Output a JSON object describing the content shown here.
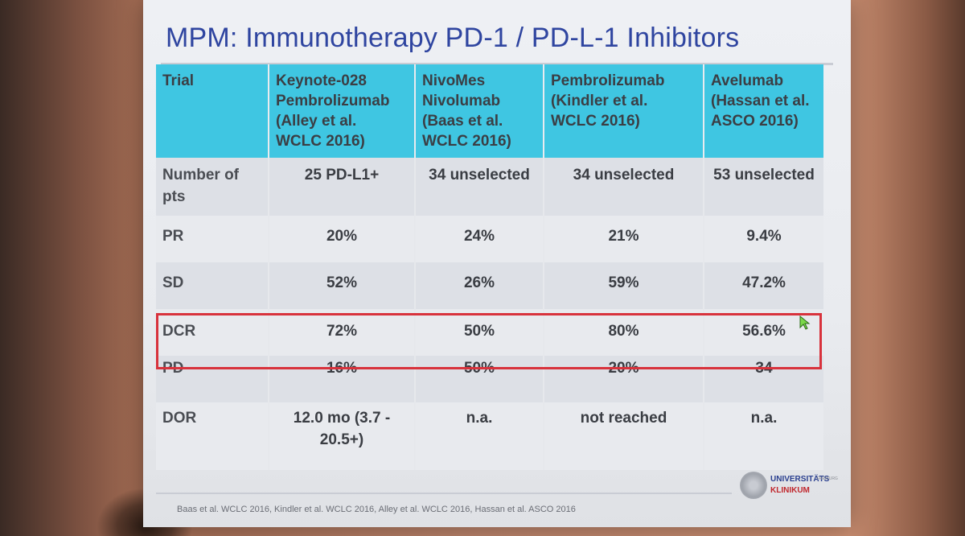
{
  "slide": {
    "title": "MPM: Immunotherapy PD-1 / PD-L-1 Inhibitors",
    "footnote": "Baas et al. WCLC 2016, Kindler et al. WCLC 2016, Alley et al.  WCLC 2016, Hassan et al. ASCO 2016",
    "logo": {
      "line1": "UNIVERSITÄTS",
      "line2": "KLINIKUM",
      "sub": "FREIBURG"
    }
  },
  "table": {
    "headers": [
      "Trial",
      "Keynote-028 Pembrolizumab (Alley et al. WCLC 2016)",
      "NivoMes Nivolumab (Baas et al. WCLC 2016)",
      "Pembrolizumab (Kindler et al. WCLC 2016)",
      "Avelumab (Hassan et al. ASCO 2016)"
    ],
    "rows": [
      {
        "label": "Number of pts",
        "cells": [
          "25 PD-L1+",
          "34 unselected",
          "34 unselected",
          "53 unselected"
        ]
      },
      {
        "label": "PR",
        "cells": [
          "20%",
          "24%",
          "21%",
          "9.4%"
        ]
      },
      {
        "label": "SD",
        "cells": [
          "52%",
          "26%",
          "59%",
          "47.2%"
        ]
      },
      {
        "label": "DCR",
        "cells": [
          "72%",
          "50%",
          "80%",
          "56.6%"
        ]
      },
      {
        "label": "PD",
        "cells": [
          "16%",
          "50%",
          "20%",
          "34"
        ]
      },
      {
        "label": "DOR",
        "cells": [
          "12.0 mo (3.7 - 20.5+)",
          "n.a.",
          "not reached",
          "n.a."
        ]
      }
    ],
    "highlighted_row": "DCR"
  },
  "colors": {
    "title": "#2f45a0",
    "header_bg": "#3fc6e2",
    "highlight": "#d8323c"
  }
}
